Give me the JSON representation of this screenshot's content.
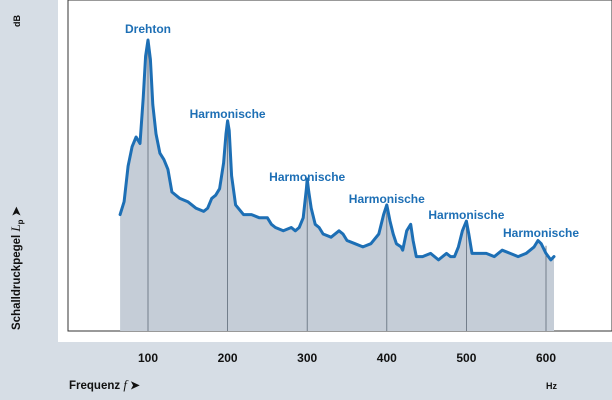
{
  "chart_data": {
    "type": "area",
    "xlabel": "Frequenz",
    "xlabel_symbol": "f",
    "xunit": "Hz",
    "ylabel": "Schalldruckpegel",
    "ylabel_symbol": "L",
    "ylabel_subscript": "p",
    "yunit": "dB",
    "xticks": [
      "100",
      "200",
      "300",
      "400",
      "500",
      "600"
    ],
    "xlim": [
      25,
      665
    ],
    "ylim": [
      0,
      100
    ],
    "series": [
      {
        "points": [
          [
            65,
            36
          ],
          [
            70,
            40
          ],
          [
            75,
            51
          ],
          [
            80,
            57
          ],
          [
            85,
            60
          ],
          [
            90,
            58
          ],
          [
            94,
            72
          ],
          [
            97,
            85
          ],
          [
            100,
            90
          ],
          [
            103,
            84
          ],
          [
            106,
            70
          ],
          [
            110,
            61
          ],
          [
            115,
            55
          ],
          [
            120,
            53
          ],
          [
            125,
            50
          ],
          [
            130,
            43
          ],
          [
            140,
            41
          ],
          [
            150,
            40
          ],
          [
            160,
            38
          ],
          [
            170,
            37
          ],
          [
            175,
            38
          ],
          [
            180,
            41
          ],
          [
            185,
            42
          ],
          [
            190,
            44
          ],
          [
            195,
            52
          ],
          [
            198,
            61
          ],
          [
            200,
            65
          ],
          [
            202,
            62
          ],
          [
            205,
            48
          ],
          [
            210,
            39
          ],
          [
            220,
            36
          ],
          [
            230,
            36
          ],
          [
            240,
            35
          ],
          [
            250,
            35
          ],
          [
            255,
            33
          ],
          [
            260,
            32
          ],
          [
            270,
            31
          ],
          [
            280,
            32
          ],
          [
            285,
            31
          ],
          [
            290,
            32
          ],
          [
            295,
            35
          ],
          [
            299,
            44
          ],
          [
            300,
            47
          ],
          [
            302,
            43
          ],
          [
            305,
            38
          ],
          [
            310,
            33
          ],
          [
            315,
            32
          ],
          [
            320,
            30
          ],
          [
            330,
            29
          ],
          [
            340,
            31
          ],
          [
            345,
            30
          ],
          [
            350,
            28
          ],
          [
            360,
            27
          ],
          [
            370,
            26
          ],
          [
            380,
            27
          ],
          [
            390,
            30
          ],
          [
            396,
            36
          ],
          [
            400,
            39
          ],
          [
            404,
            34
          ],
          [
            408,
            30
          ],
          [
            412,
            27
          ],
          [
            418,
            26
          ],
          [
            420,
            25
          ],
          [
            425,
            31
          ],
          [
            430,
            33
          ],
          [
            433,
            28
          ],
          [
            437,
            23
          ],
          [
            445,
            23
          ],
          [
            455,
            24
          ],
          [
            465,
            22
          ],
          [
            470,
            23
          ],
          [
            475,
            24
          ],
          [
            480,
            23
          ],
          [
            485,
            23
          ],
          [
            490,
            26
          ],
          [
            495,
            31
          ],
          [
            500,
            34
          ],
          [
            503,
            30
          ],
          [
            507,
            24
          ],
          [
            515,
            24
          ],
          [
            525,
            24
          ],
          [
            535,
            23
          ],
          [
            545,
            25
          ],
          [
            555,
            24
          ],
          [
            565,
            23
          ],
          [
            575,
            24
          ],
          [
            585,
            26
          ],
          [
            590,
            28
          ],
          [
            594,
            27
          ],
          [
            600,
            24
          ],
          [
            606,
            22
          ],
          [
            610,
            23
          ]
        ]
      }
    ],
    "annotations": [
      {
        "text": "Drehton",
        "x": 100,
        "y": 90
      },
      {
        "text": "Harmonische",
        "x": 200,
        "y": 65
      },
      {
        "text": "Harmonische",
        "x": 300,
        "y": 47
      },
      {
        "text": "Harmonische",
        "x": 400,
        "y": 39
      },
      {
        "text": "Harmonische",
        "x": 500,
        "y": 34
      },
      {
        "text": "Harmonische",
        "x": 600,
        "y": 27
      }
    ],
    "colors": {
      "line": "#1d6fb5",
      "fill": "#c5cdd7",
      "background": "#d6dde5"
    }
  }
}
